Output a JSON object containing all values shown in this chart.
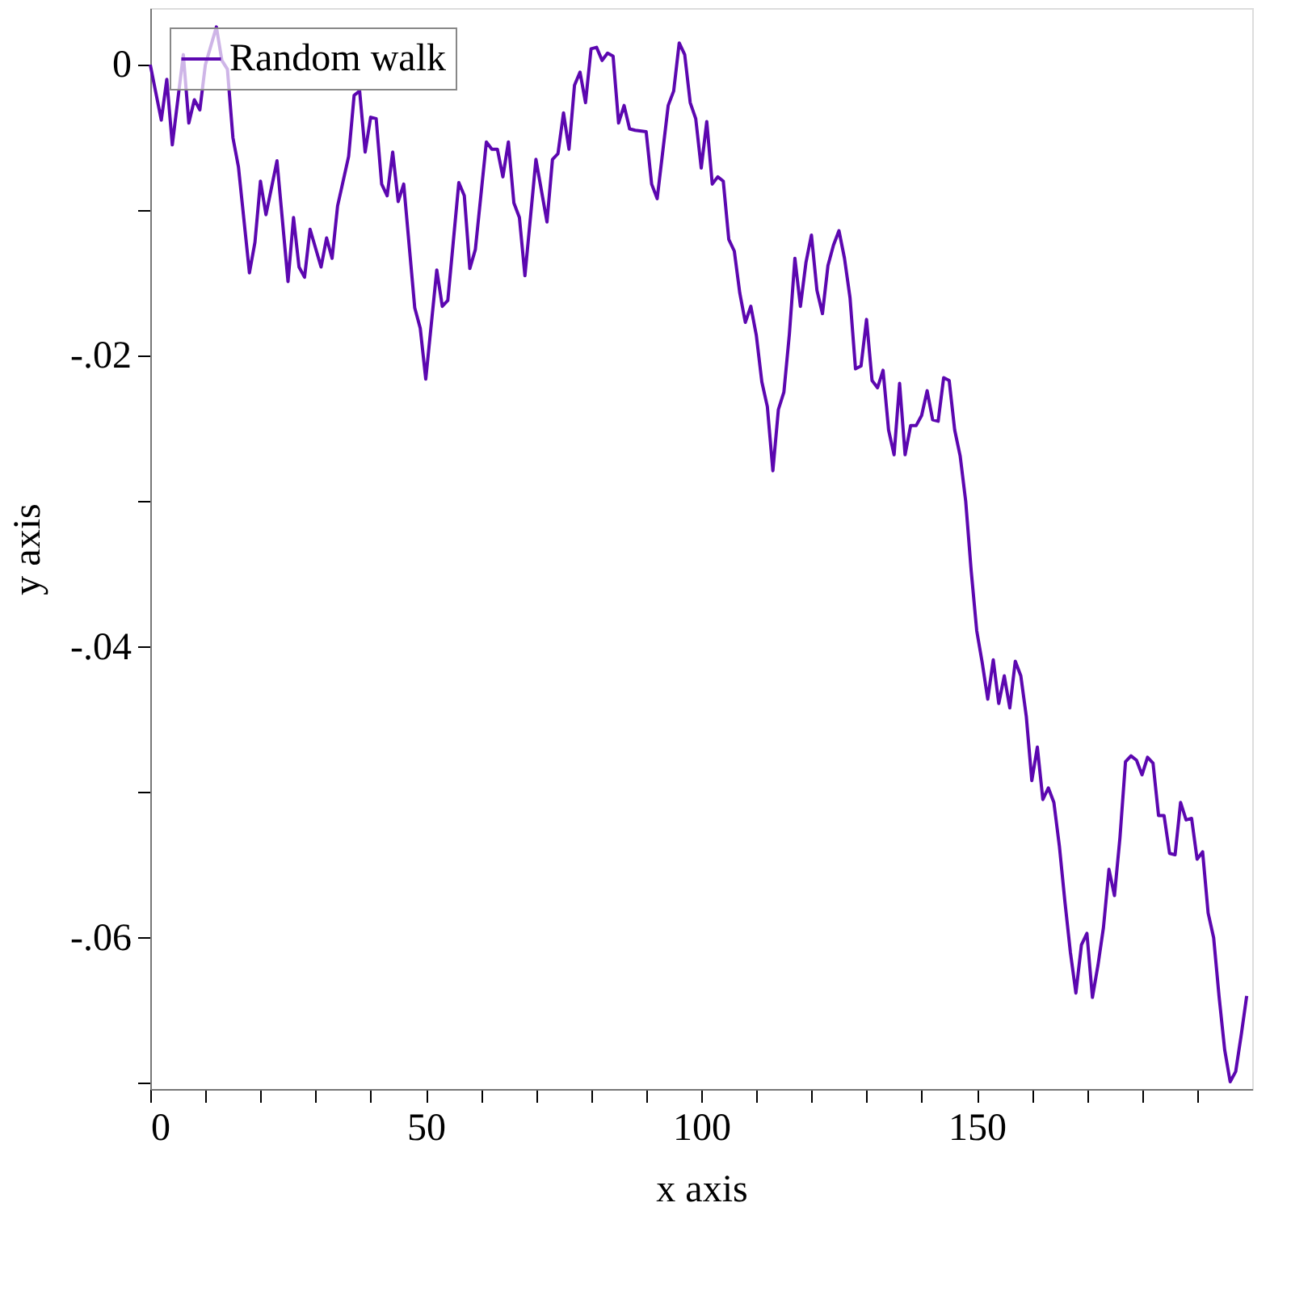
{
  "chart_data": {
    "type": "line",
    "xlabel": "x axis",
    "ylabel": "y axis",
    "xlim": [
      0,
      200
    ],
    "ylim": [
      -0.0704,
      0.0039
    ],
    "xticks": [
      0,
      {
        "value": 10,
        "label": null
      },
      {
        "value": 20,
        "label": null
      },
      {
        "value": 30,
        "label": null
      },
      {
        "value": 40,
        "label": null
      },
      50,
      {
        "value": 60,
        "label": null
      },
      {
        "value": 70,
        "label": null
      },
      {
        "value": 80,
        "label": null
      },
      {
        "value": 90,
        "label": null
      },
      100,
      {
        "value": 110,
        "label": null
      },
      {
        "value": 120,
        "label": null
      },
      {
        "value": 130,
        "label": null
      },
      {
        "value": 140,
        "label": null
      },
      150,
      {
        "value": 160,
        "label": null
      },
      {
        "value": 170,
        "label": null
      },
      {
        "value": 180,
        "label": null
      },
      {
        "value": 190,
        "label": null
      }
    ],
    "yticks": [
      0,
      {
        "value": -0.01,
        "label": null
      },
      {
        "value": -0.02,
        "label": "-.02"
      },
      {
        "value": -0.03,
        "label": null
      },
      {
        "value": -0.04,
        "label": "-.04"
      },
      {
        "value": -0.05,
        "label": null
      },
      {
        "value": -0.06,
        "label": "-.06"
      },
      {
        "value": -0.07,
        "label": null
      }
    ],
    "grid": false,
    "legend": "top left",
    "series": [
      {
        "name": "Random walk",
        "color": "#5c07b0",
        "x": [
          0,
          2,
          3,
          4,
          6,
          7,
          8,
          9,
          10,
          12,
          13,
          14,
          15,
          16,
          18,
          19,
          20,
          21,
          23,
          25,
          26,
          27,
          28,
          29,
          31,
          32,
          33,
          34,
          36,
          37,
          38,
          39,
          40,
          41,
          42,
          43,
          44,
          45,
          46,
          48,
          49,
          50,
          52,
          53,
          54,
          56,
          57,
          58,
          59,
          61,
          62,
          63,
          64,
          65,
          66,
          67,
          68,
          70,
          72,
          73,
          74,
          75,
          76,
          77,
          78,
          79,
          80,
          81,
          82,
          83,
          84,
          85,
          86,
          87,
          88,
          90,
          91,
          92,
          94,
          95,
          96,
          97,
          98,
          99,
          100,
          101,
          102,
          103,
          104,
          105,
          106,
          107,
          108,
          109,
          110,
          111,
          112,
          113,
          114,
          115,
          116,
          117,
          118,
          119,
          120,
          121,
          122,
          123,
          124,
          125,
          126,
          127,
          128,
          129,
          130,
          131,
          132,
          133,
          134,
          135,
          136,
          137,
          138,
          139,
          140,
          141,
          142,
          143,
          144,
          145,
          146,
          147,
          148,
          149,
          150,
          151,
          152,
          153,
          154,
          155,
          156,
          157,
          158,
          159,
          160,
          161,
          162,
          163,
          164,
          165,
          166,
          167,
          168,
          169,
          170,
          171,
          172,
          173,
          174,
          175,
          176,
          177,
          178,
          179,
          180,
          181,
          182,
          183,
          184,
          185,
          186,
          187,
          188,
          189,
          190,
          191,
          192,
          193,
          194,
          195,
          196,
          197,
          198,
          199
        ],
        "values": [
          0,
          -0.0038,
          -0.001,
          -0.0055,
          0.0007,
          -0.004,
          -0.0024,
          -0.0031,
          0.0,
          0.0026,
          0.0003,
          -0.0003,
          -0.005,
          -0.007,
          -0.0143,
          -0.0122,
          -0.008,
          -0.0103,
          -0.0066,
          -0.0149,
          -0.0105,
          -0.0139,
          -0.0146,
          -0.0113,
          -0.0139,
          -0.0119,
          -0.0133,
          -0.0097,
          -0.0063,
          -0.0021,
          -0.0018,
          -0.006,
          -0.0036,
          -0.0037,
          -0.0082,
          -0.009,
          -0.006,
          -0.0094,
          -0.0082,
          -0.0167,
          -0.0181,
          -0.0216,
          -0.0141,
          -0.0166,
          -0.0162,
          -0.0081,
          -0.009,
          -0.014,
          -0.0127,
          -0.0053,
          -0.0058,
          -0.0058,
          -0.0077,
          -0.0053,
          -0.0095,
          -0.0105,
          -0.0145,
          -0.0065,
          -0.0108,
          -0.0065,
          -0.0061,
          -0.0033,
          -0.0058,
          -0.0014,
          -0.0005,
          -0.0026,
          0.0011,
          0.0012,
          0.0003,
          0.0008,
          0.0006,
          -0.004,
          -0.0028,
          -0.0044,
          -0.0045,
          -0.0046,
          -0.0082,
          -0.0092,
          -0.0028,
          -0.0018,
          0.0015,
          0.0007,
          -0.0026,
          -0.0037,
          -0.0071,
          -0.0039,
          -0.0082,
          -0.0077,
          -0.008,
          -0.012,
          -0.0128,
          -0.0157,
          -0.0177,
          -0.0166,
          -0.0186,
          -0.0218,
          -0.0235,
          -0.0279,
          -0.0237,
          -0.0225,
          -0.0185,
          -0.0133,
          -0.0166,
          -0.0136,
          -0.0117,
          -0.0155,
          -0.0171,
          -0.0138,
          -0.0124,
          -0.0114,
          -0.0133,
          -0.016,
          -0.0209,
          -0.0207,
          -0.0175,
          -0.0217,
          -0.0222,
          -0.021,
          -0.0251,
          -0.0268,
          -0.0219,
          -0.0268,
          -0.0248,
          -0.0248,
          -0.0241,
          -0.0224,
          -0.0244,
          -0.0245,
          -0.0215,
          -0.0217,
          -0.0251,
          -0.0269,
          -0.03,
          -0.0348,
          -0.0389,
          -0.0411,
          -0.0436,
          -0.0409,
          -0.0439,
          -0.042,
          -0.0442,
          -0.041,
          -0.042,
          -0.0448,
          -0.0492,
          -0.0469,
          -0.0505,
          -0.0497,
          -0.0507,
          -0.0537,
          -0.0575,
          -0.061,
          -0.0638,
          -0.0605,
          -0.0597,
          -0.0641,
          -0.0619,
          -0.0593,
          -0.0553,
          -0.0571,
          -0.0531,
          -0.0479,
          -0.0475,
          -0.0478,
          -0.0488,
          -0.0476,
          -0.048,
          -0.0516,
          -0.0516,
          -0.0542,
          -0.0543,
          -0.0507,
          -0.0519,
          -0.0518,
          -0.0546,
          -0.0541,
          -0.0583,
          -0.06,
          -0.0641,
          -0.0677,
          -0.0699,
          -0.0692,
          -0.0667,
          -0.064
        ]
      }
    ]
  }
}
